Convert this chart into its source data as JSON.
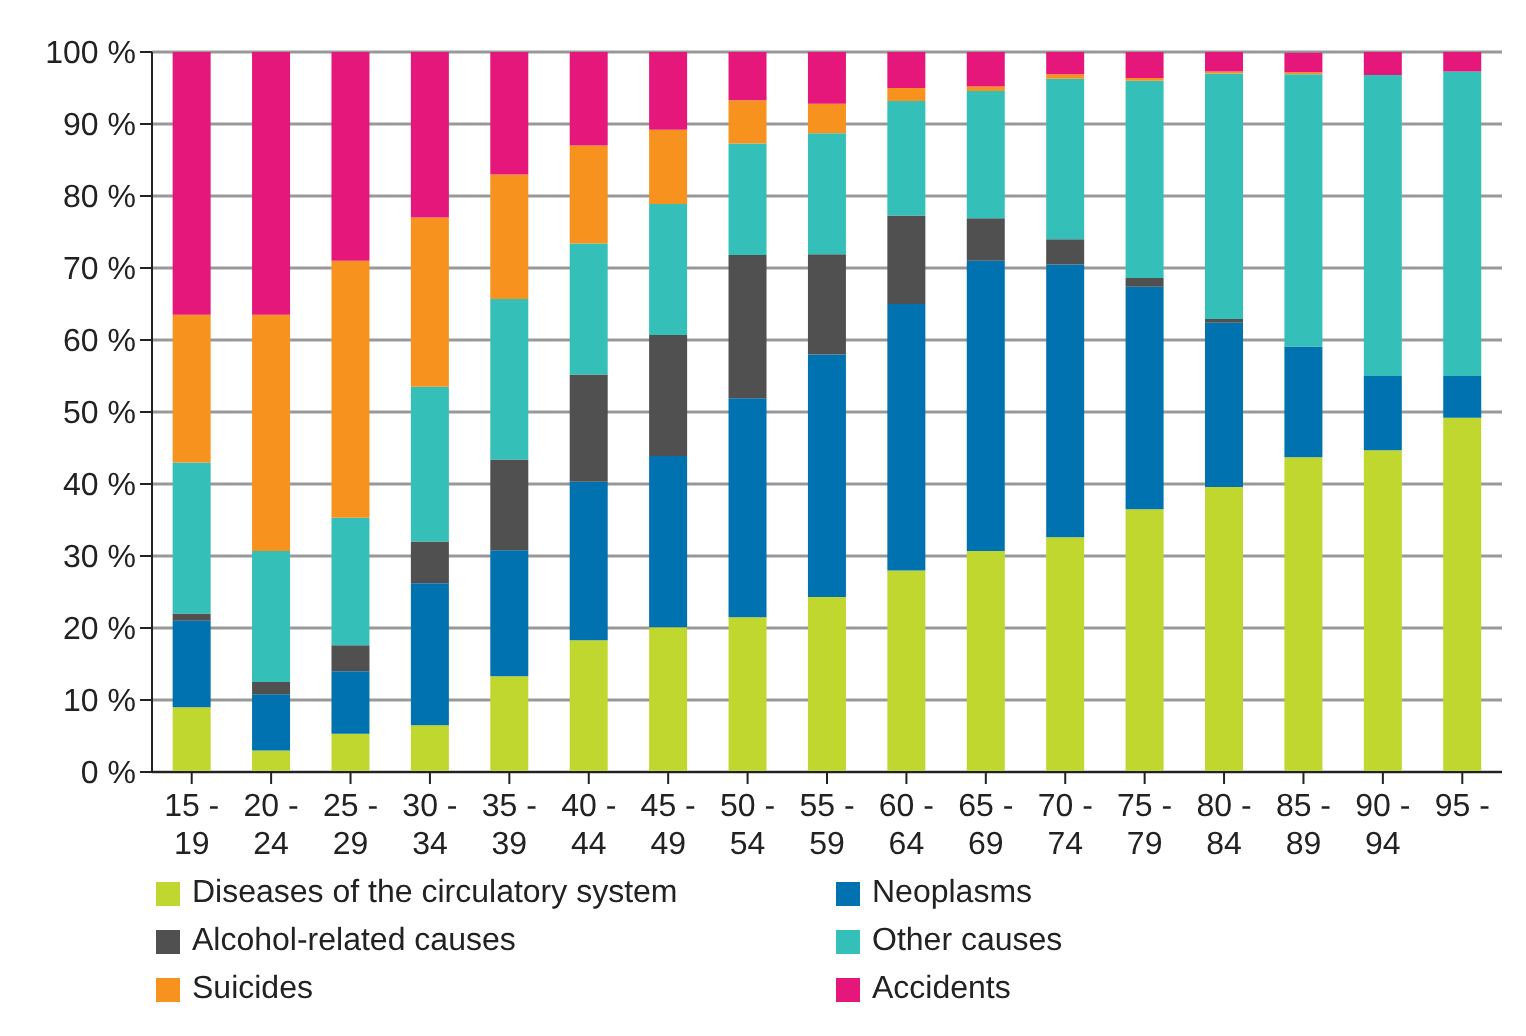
{
  "chart_data": {
    "type": "bar",
    "stacked": true,
    "categories": [
      "15 - 19",
      "20 - 24",
      "25 - 29",
      "30 - 34",
      "35 - 39",
      "40 - 44",
      "45 - 49",
      "50 - 54",
      "55 - 59",
      "60 - 64",
      "65 - 69",
      "70 - 74",
      "75 - 79",
      "80 - 84",
      "85 - 89",
      "90 - 94",
      "95 -"
    ],
    "series": [
      {
        "name": "Diseases of the circulatory system",
        "color": "#c0d730",
        "values": [
          9,
          3,
          5.3,
          6.5,
          13.3,
          18.3,
          20.1,
          21.5,
          24.3,
          28,
          30.7,
          32.6,
          36.5,
          39.6,
          43.7,
          44.7,
          49.2
        ]
      },
      {
        "name": "Neoplasms",
        "color": "#0072b0",
        "values": [
          12,
          7.8,
          8.7,
          19.7,
          17.5,
          22,
          23.8,
          30.4,
          33.7,
          37,
          40.3,
          37.9,
          30.9,
          22.8,
          15.4,
          10.3,
          5.8
        ]
      },
      {
        "name": "Alcohol-related causes",
        "color": "#505050",
        "values": [
          1,
          1.7,
          3.6,
          5.8,
          12.6,
          14.9,
          16.8,
          19.9,
          13.9,
          12.3,
          5.9,
          3.5,
          1.2,
          0.5,
          null,
          0,
          0
        ]
      },
      {
        "name": "Other causes",
        "color": "#34c0b8",
        "values": [
          21,
          18.2,
          17.7,
          21.5,
          22.3,
          18.2,
          18.2,
          15.5,
          16.8,
          15.9,
          17.7,
          22.3,
          27.4,
          34.1,
          37.8,
          41.8,
          42.3
        ]
      },
      {
        "name": "Suicides",
        "color": "#f7921e",
        "values": [
          20.5,
          32.8,
          35.7,
          23.5,
          17.3,
          13.6,
          10.3,
          6,
          4.1,
          1.8,
          0.6,
          0.6,
          0.4,
          0.3,
          0.3,
          0,
          0
        ]
      },
      {
        "name": "Accidents",
        "color": "#e5177a",
        "values": [
          36.5,
          36.5,
          29,
          23,
          17,
          13,
          10.8,
          6.7,
          7.2,
          5,
          4.8,
          3.1,
          3.6,
          2.7,
          2.7,
          3.2,
          2.7
        ]
      }
    ],
    "ylim": [
      0,
      100
    ],
    "yticks": [
      {
        "value": 0,
        "label": "0 %"
      },
      {
        "value": 10,
        "label": "10 %"
      },
      {
        "value": 20,
        "label": "20 %"
      },
      {
        "value": 30,
        "label": "30 %"
      },
      {
        "value": 40,
        "label": "40 %"
      },
      {
        "value": 50,
        "label": "50 %"
      },
      {
        "value": 60,
        "label": "60 %"
      },
      {
        "value": 70,
        "label": "70 %"
      },
      {
        "value": 80,
        "label": "80 %"
      },
      {
        "value": 90,
        "label": "90 %"
      },
      {
        "value": 100,
        "label": "100 %"
      }
    ],
    "grid": "y",
    "legend": "bottom"
  }
}
